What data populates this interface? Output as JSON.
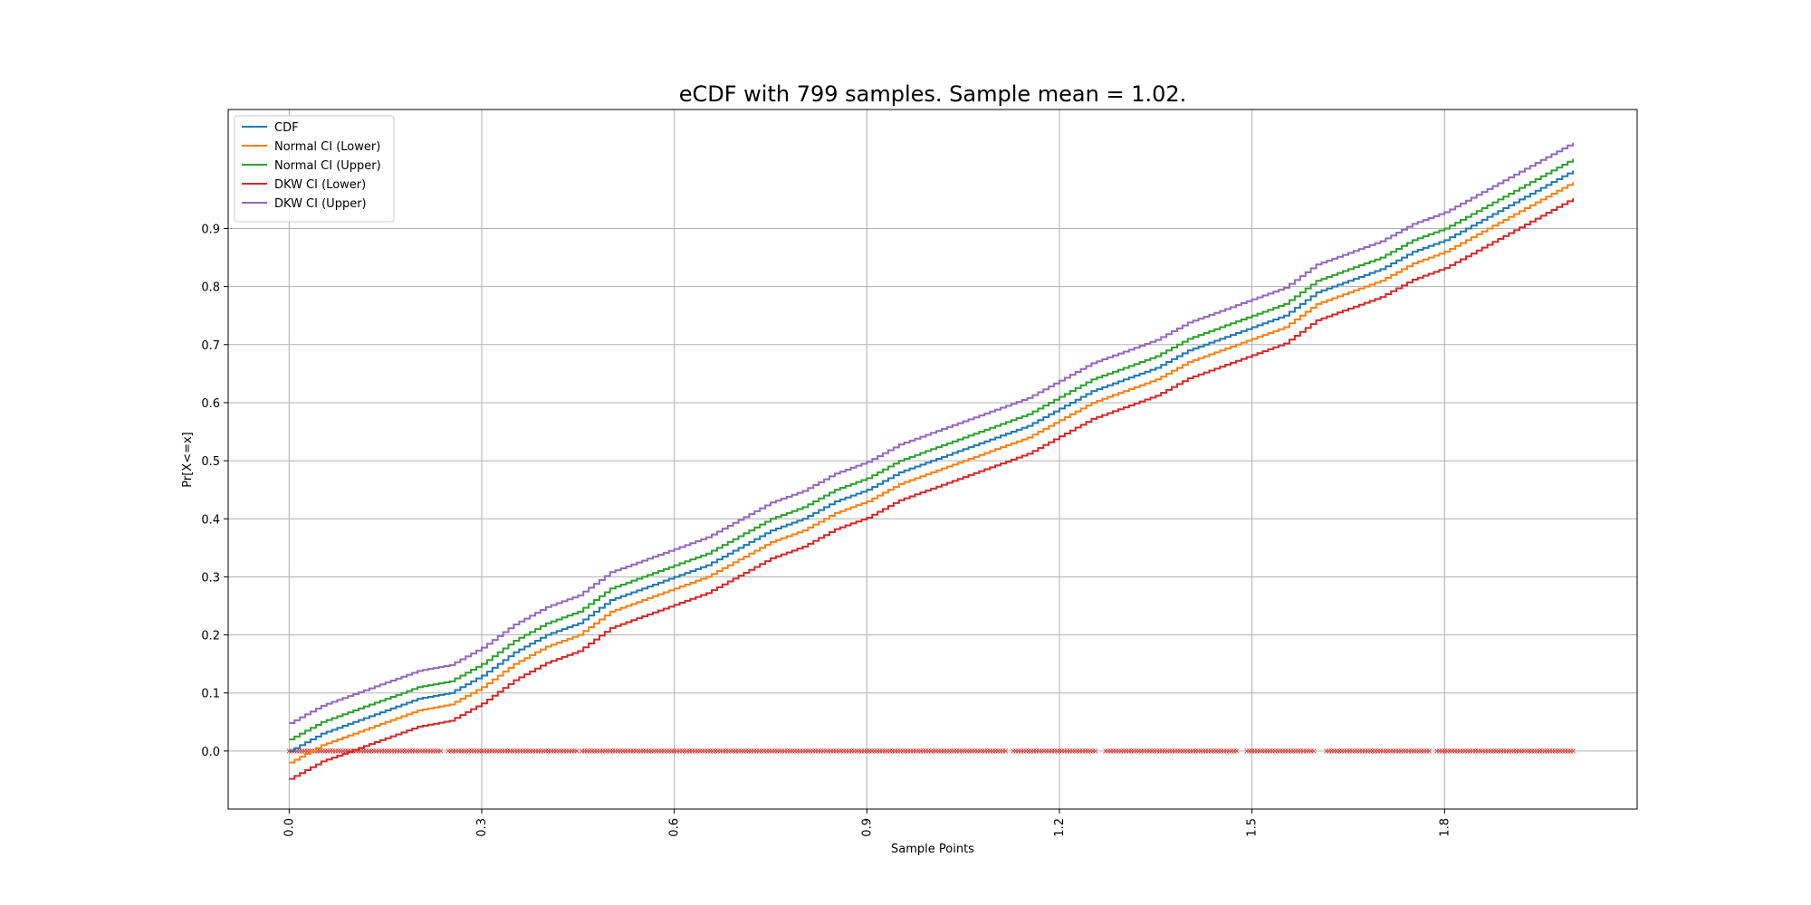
{
  "chart_data": {
    "type": "line",
    "title": "eCDF with 799 samples. Sample mean = 1.02.",
    "xlabel": "Sample Points",
    "ylabel": "Pr[X<=x]",
    "xlim": [
      -0.095,
      2.1
    ],
    "ylim": [
      -0.1,
      1.105
    ],
    "xticks": [
      "0.0",
      "0.3",
      "0.6",
      "0.9",
      "1.2",
      "1.5",
      "1.8"
    ],
    "xtick_values": [
      0.0,
      0.3,
      0.6,
      0.9,
      1.2,
      1.5,
      1.8
    ],
    "yticks": [
      "0.0",
      "0.1",
      "0.2",
      "0.3",
      "0.4",
      "0.5",
      "0.6",
      "0.7",
      "0.8",
      "0.9"
    ],
    "ytick_values": [
      0.0,
      0.1,
      0.2,
      0.3,
      0.4,
      0.5,
      0.6,
      0.7,
      0.8,
      0.9
    ],
    "grid": true,
    "legend_position": "top-left",
    "x": [
      0.0,
      0.05,
      0.1,
      0.15,
      0.2,
      0.25,
      0.3,
      0.35,
      0.4,
      0.45,
      0.5,
      0.55,
      0.6,
      0.65,
      0.7,
      0.75,
      0.8,
      0.85,
      0.9,
      0.95,
      1.0,
      1.05,
      1.1,
      1.15,
      1.2,
      1.25,
      1.3,
      1.35,
      1.4,
      1.45,
      1.5,
      1.55,
      1.6,
      1.65,
      1.7,
      1.75,
      1.8,
      1.85,
      1.9,
      1.95,
      2.0
    ],
    "series": [
      {
        "name": "CDF",
        "color": "#1f77b4",
        "values": [
          0.0,
          0.03,
          0.05,
          0.07,
          0.09,
          0.1,
          0.13,
          0.17,
          0.2,
          0.22,
          0.26,
          0.28,
          0.3,
          0.32,
          0.35,
          0.38,
          0.4,
          0.43,
          0.45,
          0.48,
          0.5,
          0.52,
          0.54,
          0.56,
          0.59,
          0.62,
          0.64,
          0.66,
          0.69,
          0.71,
          0.73,
          0.75,
          0.79,
          0.81,
          0.83,
          0.86,
          0.88,
          0.91,
          0.94,
          0.97,
          1.0
        ]
      },
      {
        "name": "Normal CI (Lower)",
        "color": "#ff7f0e",
        "values": [
          -0.02,
          0.01,
          0.03,
          0.05,
          0.07,
          0.08,
          0.11,
          0.15,
          0.18,
          0.2,
          0.24,
          0.26,
          0.28,
          0.3,
          0.33,
          0.36,
          0.38,
          0.41,
          0.43,
          0.46,
          0.48,
          0.5,
          0.52,
          0.54,
          0.57,
          0.6,
          0.62,
          0.64,
          0.67,
          0.69,
          0.71,
          0.73,
          0.77,
          0.79,
          0.81,
          0.84,
          0.86,
          0.89,
          0.92,
          0.95,
          0.98
        ]
      },
      {
        "name": "Normal CI (Upper)",
        "color": "#2ca02c",
        "values": [
          0.02,
          0.05,
          0.07,
          0.09,
          0.11,
          0.12,
          0.15,
          0.19,
          0.22,
          0.24,
          0.28,
          0.3,
          0.32,
          0.34,
          0.37,
          0.4,
          0.42,
          0.45,
          0.47,
          0.5,
          0.52,
          0.54,
          0.56,
          0.58,
          0.61,
          0.64,
          0.66,
          0.68,
          0.71,
          0.73,
          0.75,
          0.77,
          0.81,
          0.83,
          0.85,
          0.88,
          0.9,
          0.93,
          0.96,
          0.99,
          1.02
        ]
      },
      {
        "name": "DKW CI (Lower)",
        "color": "#d62728",
        "values": [
          -0.048,
          -0.018,
          0.002,
          0.022,
          0.042,
          0.052,
          0.082,
          0.122,
          0.152,
          0.172,
          0.212,
          0.232,
          0.252,
          0.272,
          0.302,
          0.332,
          0.352,
          0.382,
          0.402,
          0.432,
          0.452,
          0.472,
          0.492,
          0.512,
          0.542,
          0.572,
          0.592,
          0.612,
          0.642,
          0.662,
          0.682,
          0.702,
          0.742,
          0.762,
          0.782,
          0.812,
          0.832,
          0.862,
          0.892,
          0.922,
          0.952
        ]
      },
      {
        "name": "DKW CI (Upper)",
        "color": "#9467bd",
        "values": [
          0.048,
          0.078,
          0.098,
          0.118,
          0.138,
          0.148,
          0.178,
          0.218,
          0.248,
          0.268,
          0.308,
          0.328,
          0.348,
          0.368,
          0.398,
          0.428,
          0.448,
          0.478,
          0.498,
          0.528,
          0.548,
          0.568,
          0.588,
          0.608,
          0.638,
          0.668,
          0.688,
          0.708,
          0.738,
          0.758,
          0.778,
          0.798,
          0.838,
          0.858,
          0.878,
          0.908,
          0.928,
          0.958,
          0.988,
          1.018,
          1.048
        ]
      }
    ],
    "samples": {
      "color": "#d62728",
      "marker": "x",
      "y": 0.0,
      "gaps": [
        [
          0.07,
          0.072
        ],
        [
          0.24,
          0.245
        ],
        [
          0.45,
          0.455
        ],
        [
          1.12,
          1.125
        ],
        [
          1.26,
          1.27
        ],
        [
          1.48,
          1.49
        ],
        [
          1.6,
          1.615
        ],
        [
          1.78,
          1.785
        ]
      ]
    }
  }
}
